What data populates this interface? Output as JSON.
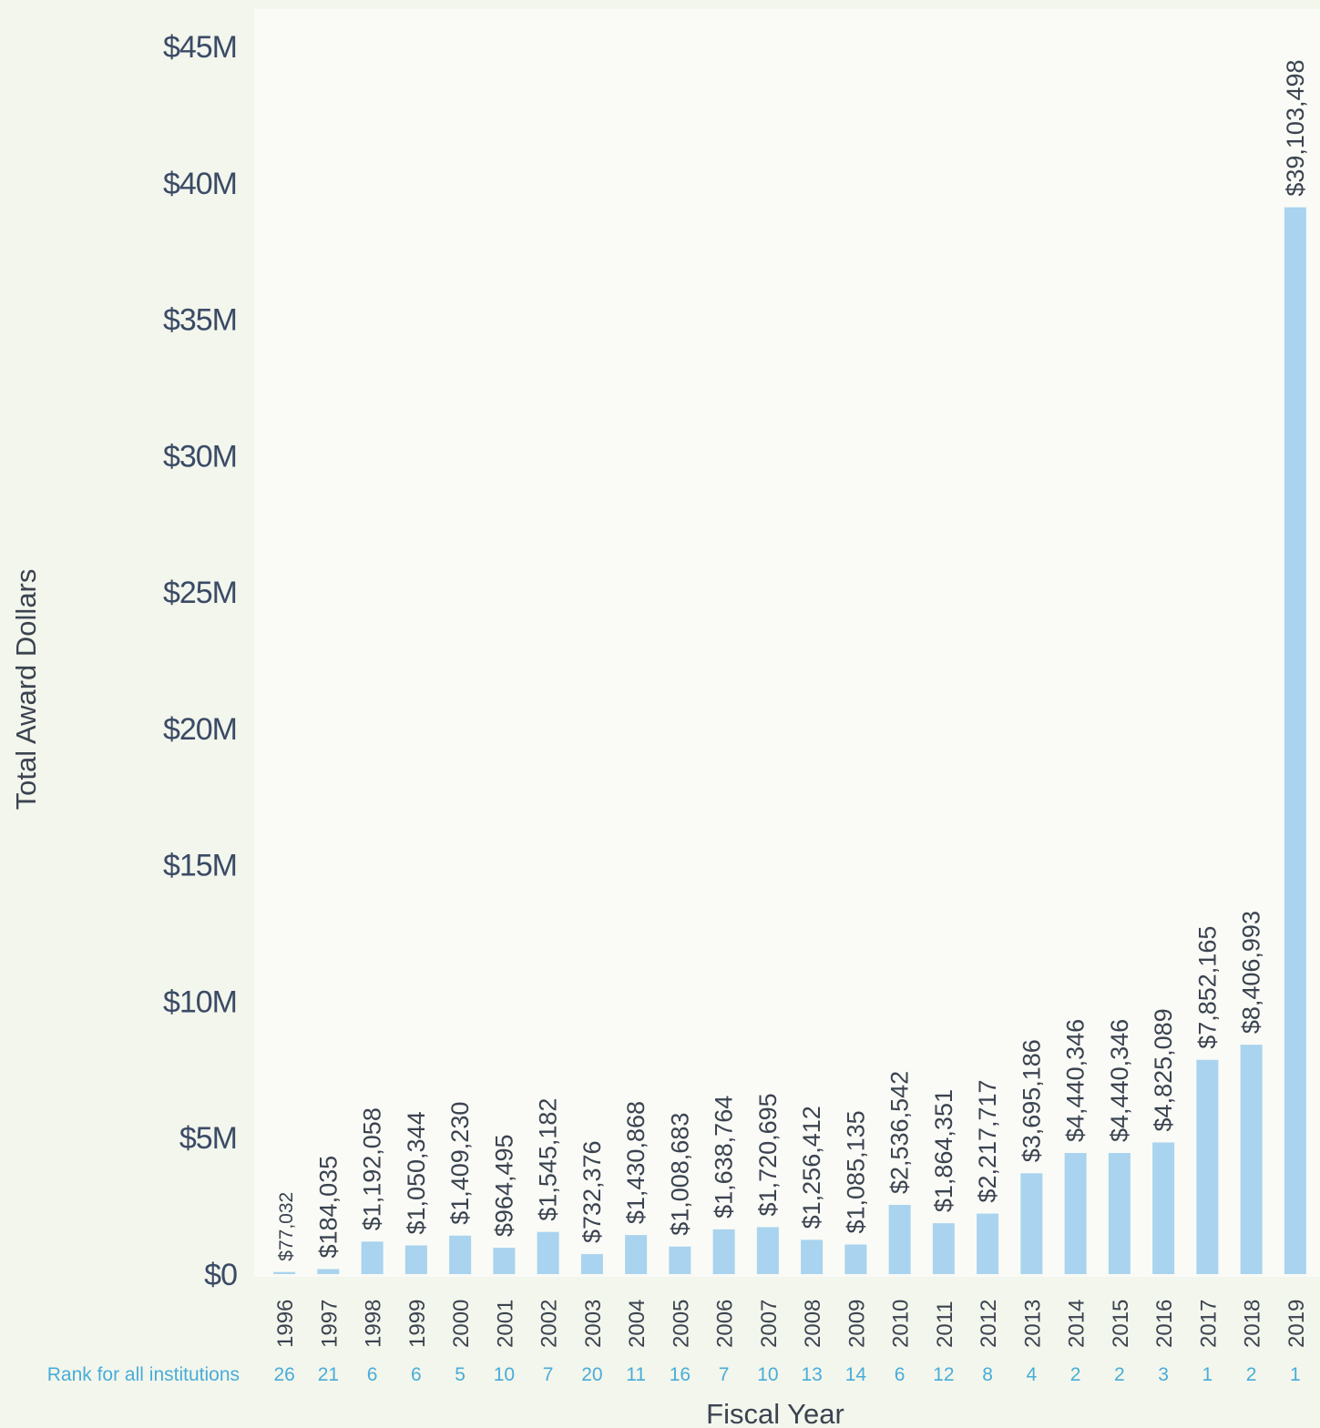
{
  "chart_data": {
    "type": "bar",
    "xlabel": "Fiscal Year",
    "ylabel": "Total Award Dollars",
    "ylim": [
      0,
      45000000
    ],
    "yticks": [
      "$0",
      "$5M",
      "$10M",
      "$15M",
      "$20M",
      "$25M",
      "$30M",
      "$35M",
      "$40M",
      "$45M"
    ],
    "grid": false,
    "bar_color": "#a9d3ee",
    "rank_color": "#49acd9",
    "rank_row_label": "Rank for all institutions",
    "categories": [
      "1996",
      "1997",
      "1998",
      "1999",
      "2000",
      "2001",
      "2002",
      "2003",
      "2004",
      "2005",
      "2006",
      "2007",
      "2008",
      "2009",
      "2010",
      "2011",
      "2012",
      "2013",
      "2014",
      "2015",
      "2016",
      "2017",
      "2018",
      "2019"
    ],
    "values": [
      77032,
      184035,
      1192058,
      1050344,
      1409230,
      964495,
      1545182,
      732376,
      1430868,
      1008683,
      1638764,
      1720695,
      1256412,
      1085135,
      2536542,
      1864351,
      2217717,
      3695186,
      4440346,
      4440346,
      4825089,
      7852165,
      8406993,
      39103498
    ],
    "value_labels": [
      "$77,032",
      "$184,035",
      "$1,192,058",
      "$1,050,344",
      "$1,409,230",
      "$964,495",
      "$1,545,182",
      "$732,376",
      "$1,430,868",
      "$1,008,683",
      "$1,638,764",
      "$1,720,695",
      "$1,256,412",
      "$1,085,135",
      "$2,536,542",
      "$1,864,351",
      "$2,217,717",
      "$3,695,186",
      "$4,440,346",
      "$4,440,346",
      "$4,825,089",
      "$7,852,165",
      "$8,406,993",
      "$39,103,498"
    ],
    "ranks": [
      "26",
      "21",
      "6",
      "6",
      "5",
      "10",
      "7",
      "20",
      "11",
      "16",
      "7",
      "10",
      "13",
      "14",
      "6",
      "12",
      "8",
      "4",
      "2",
      "2",
      "3",
      "1",
      "2",
      "1"
    ]
  }
}
